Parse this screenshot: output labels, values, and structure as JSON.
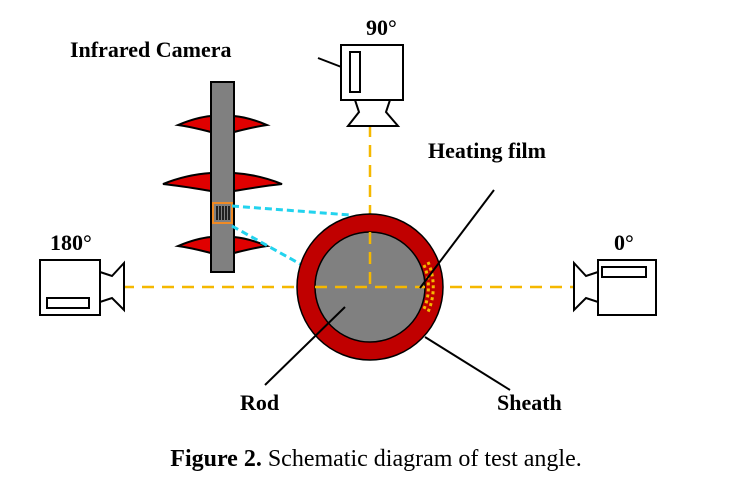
{
  "figure": {
    "labels": {
      "infrared_camera": "Infrared Camera",
      "angle_90": "90°",
      "angle_180": "180°",
      "angle_0": "0°",
      "heating_film": "Heating film",
      "rod": "Rod",
      "sheath": "Sheath"
    },
    "caption": {
      "prefix": "Figure 2.",
      "text": " Schematic diagram of test angle."
    }
  },
  "colors": {
    "sheath": "#c00000",
    "rod": "#808080",
    "axis_dash": "#f5b800",
    "view_lines": "#22d3ee",
    "camera_window": "#f08a24",
    "insulator_shed": "#e00000"
  }
}
